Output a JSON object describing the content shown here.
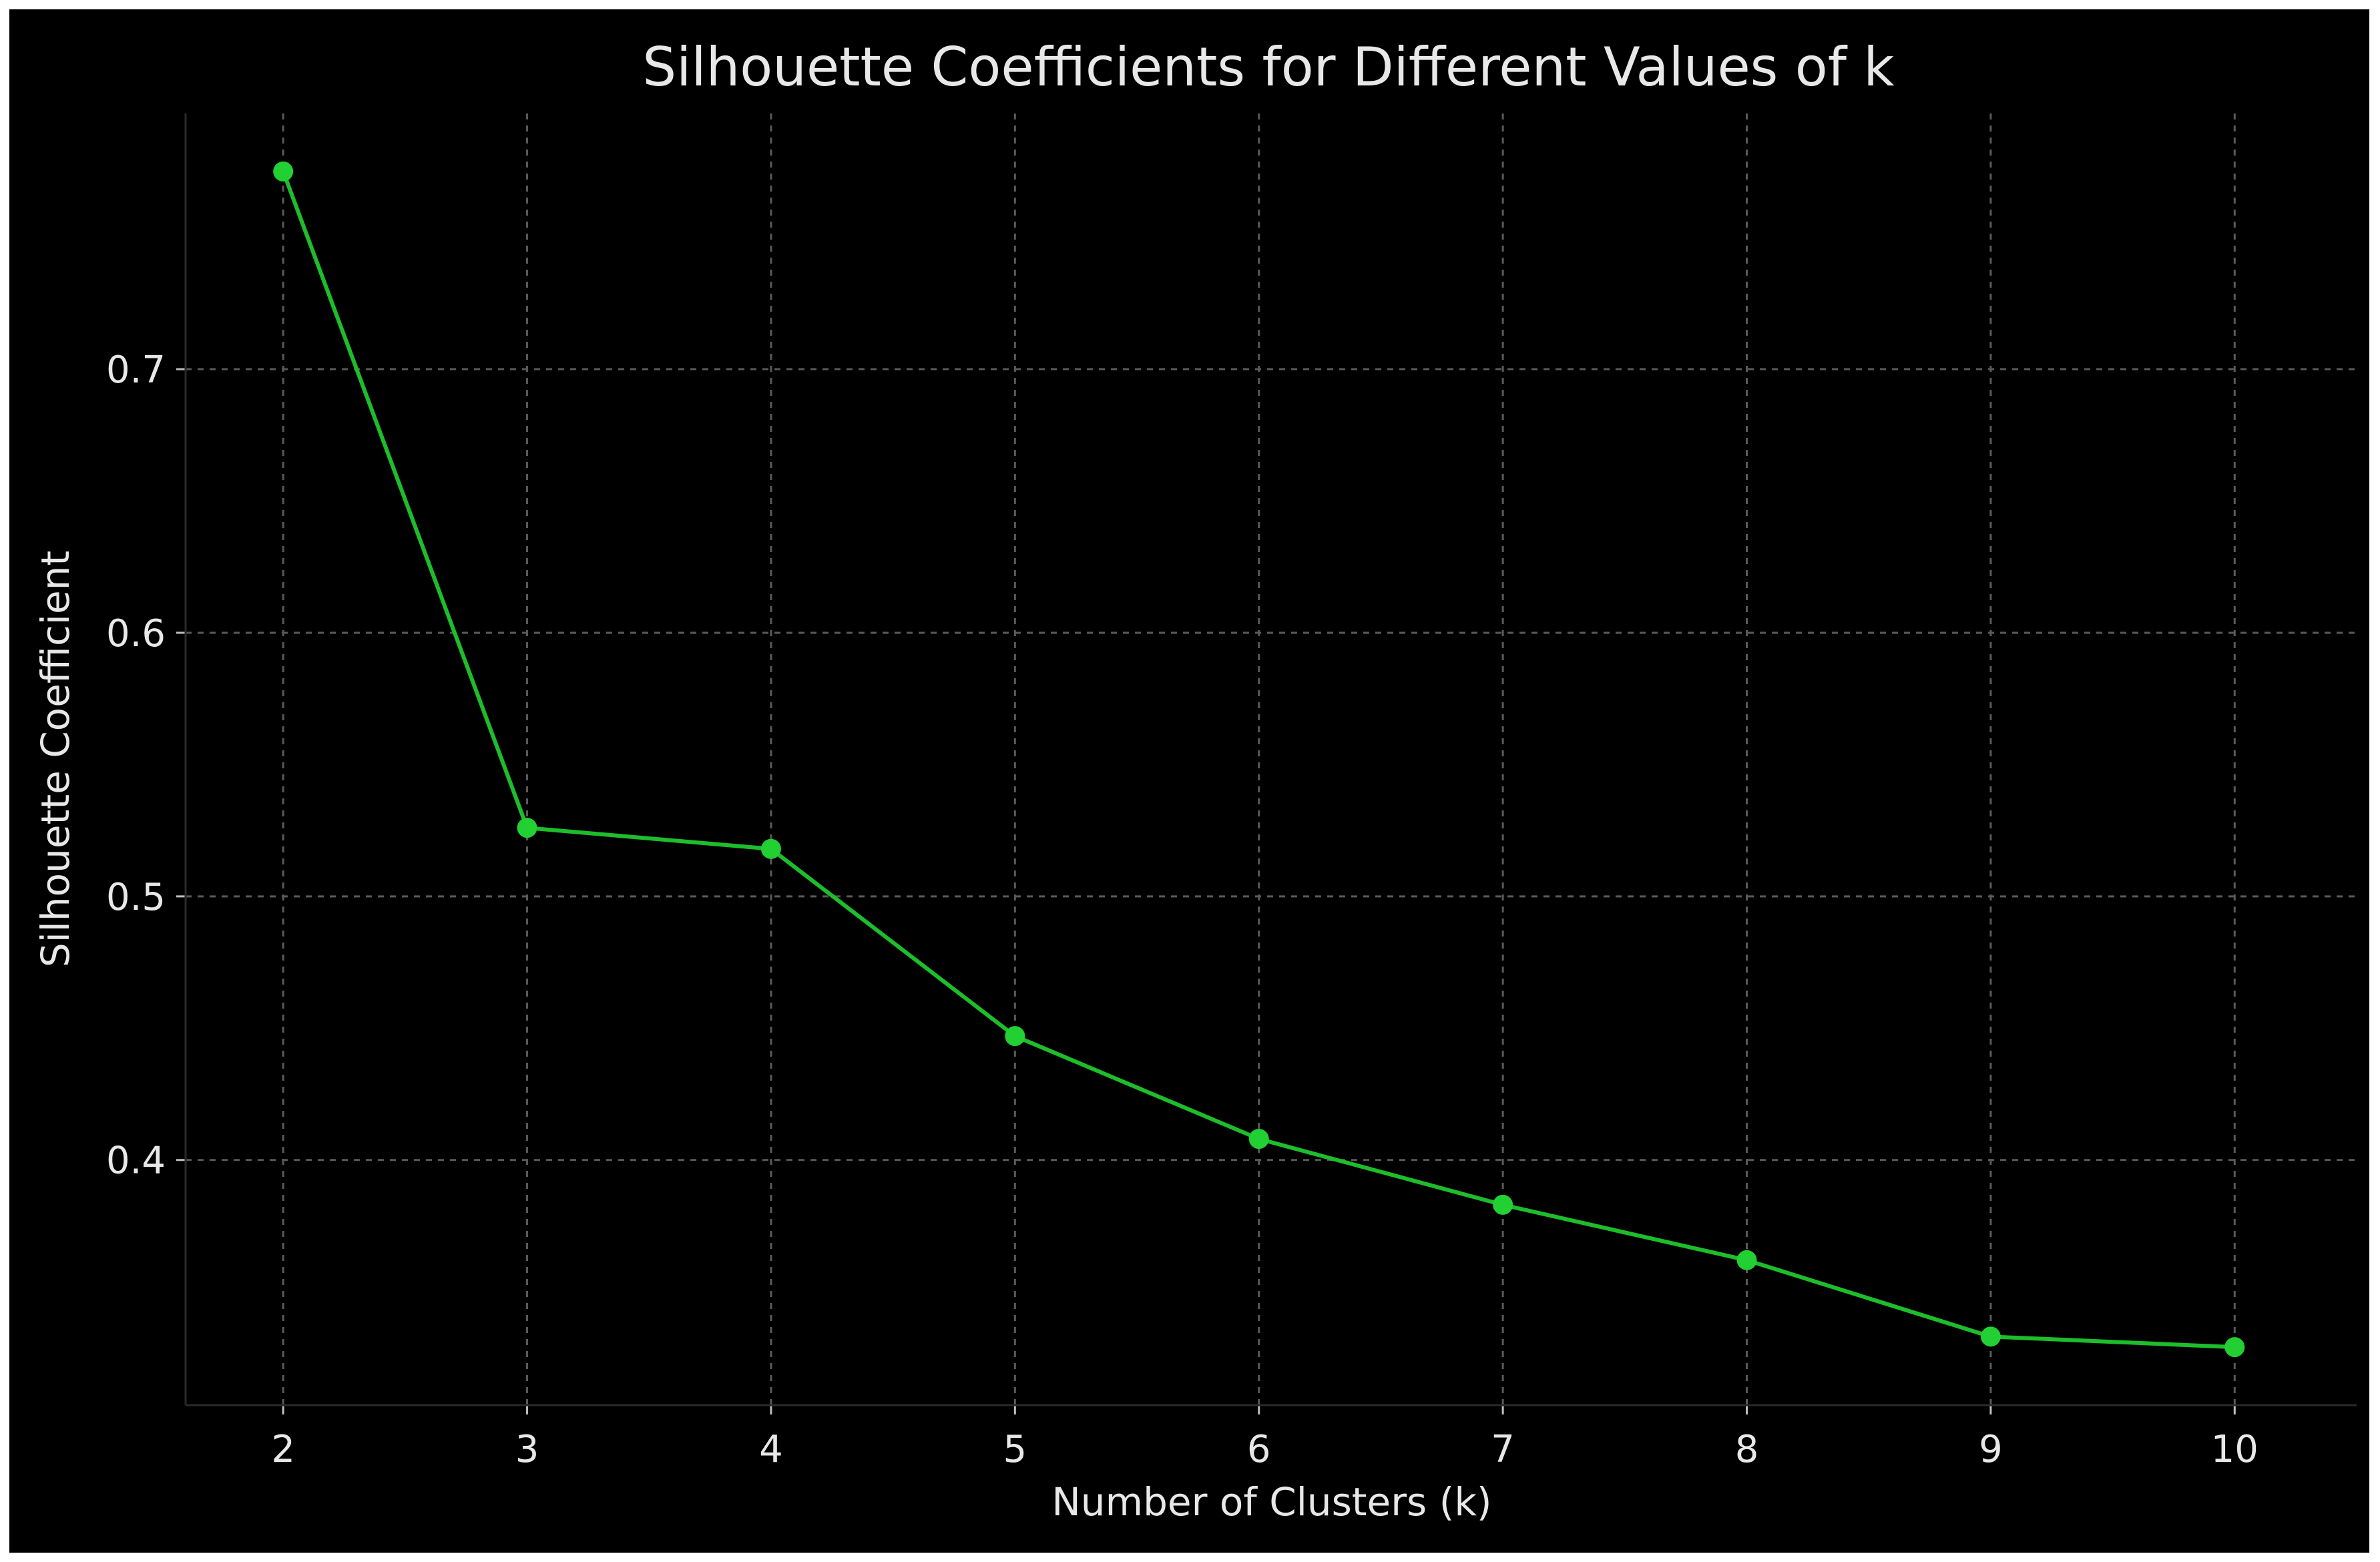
{
  "chart_data": {
    "type": "line",
    "title": "Silhouette Coefficients for Different Values of k",
    "xlabel": "Number of Clusters (k)",
    "ylabel": "Silhouette Coefficient",
    "x": [
      2,
      3,
      4,
      5,
      6,
      7,
      8,
      9,
      10
    ],
    "series": [
      {
        "values": [
          0.775,
          0.526,
          0.518,
          0.447,
          0.408,
          0.383,
          0.362,
          0.333,
          0.329
        ]
      }
    ],
    "x_ticks": [
      "2",
      "3",
      "4",
      "5",
      "6",
      "7",
      "8",
      "9",
      "10"
    ],
    "y_ticks": [
      "0.4",
      "0.5",
      "0.6",
      "0.7"
    ],
    "xlim": [
      1.6,
      10.5
    ],
    "ylim": [
      0.307,
      0.797
    ],
    "grid": true,
    "markers": true,
    "colors": {
      "background": "#000000",
      "frame": "#ffffff",
      "line": "#1dbd2b",
      "marker": "#22d033",
      "grid": "#5a5a5a",
      "text": "#e8e8e8"
    }
  }
}
